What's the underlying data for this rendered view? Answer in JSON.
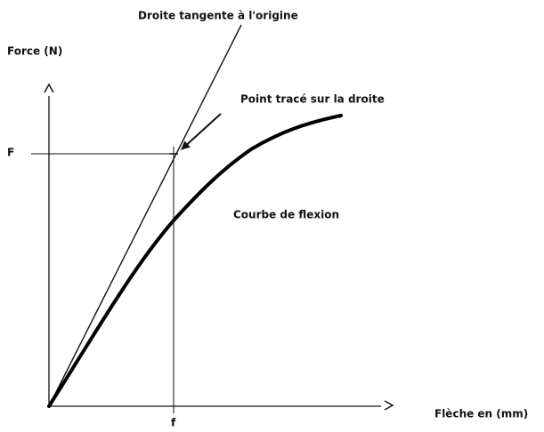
{
  "title": "Droite tangente à l'origine",
  "y_axis_label": "Force (N)",
  "x_axis_label": "Flèche en (mm)",
  "y_marker": "F",
  "x_marker": "f",
  "annotations": {
    "point": "Point tracé sur la droite",
    "curve": "Courbe de flexion"
  }
}
